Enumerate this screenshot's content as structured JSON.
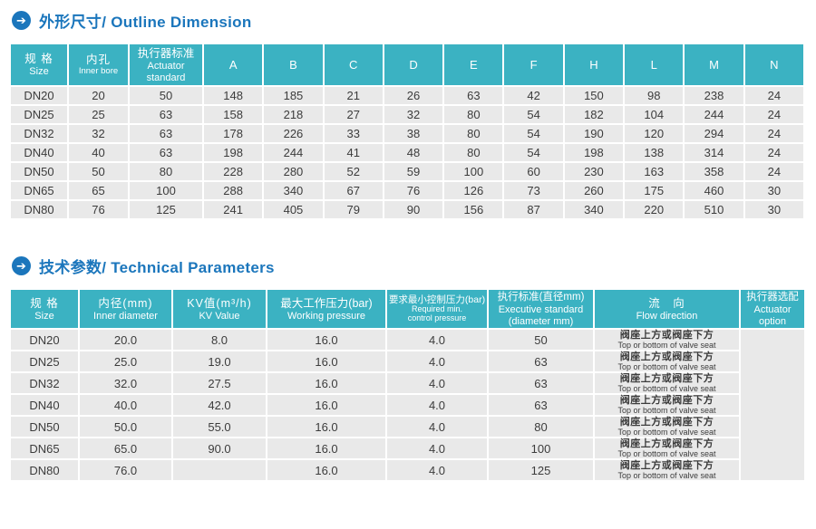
{
  "colors": {
    "accent_blue": "#1b76bc",
    "header_teal": "#3bb2c2",
    "row_gray": "#e9e9e9",
    "text_dark": "#3c3c3c"
  },
  "sections": {
    "outline": {
      "title": "外形尺寸/ Outline Dimension"
    },
    "technical": {
      "title": "技术参数/ Technical Parameters"
    }
  },
  "icons": {
    "arrow_right": "➔"
  },
  "outline_table": {
    "headers": [
      [
        "规 格",
        "Size"
      ],
      [
        "内孔",
        "Inner bore"
      ],
      [
        "执行器标准",
        "Actuator",
        "standard"
      ],
      [
        "A"
      ],
      [
        "B"
      ],
      [
        "C"
      ],
      [
        "D"
      ],
      [
        "E"
      ],
      [
        "F"
      ],
      [
        "H"
      ],
      [
        "L"
      ],
      [
        "M"
      ],
      [
        "N"
      ]
    ],
    "rows": [
      [
        "DN20",
        "20",
        "50",
        "148",
        "185",
        "21",
        "26",
        "63",
        "42",
        "150",
        "98",
        "238",
        "24"
      ],
      [
        "DN25",
        "25",
        "63",
        "158",
        "218",
        "27",
        "32",
        "80",
        "54",
        "182",
        "104",
        "244",
        "24"
      ],
      [
        "DN32",
        "32",
        "63",
        "178",
        "226",
        "33",
        "38",
        "80",
        "54",
        "190",
        "120",
        "294",
        "24"
      ],
      [
        "DN40",
        "40",
        "63",
        "198",
        "244",
        "41",
        "48",
        "80",
        "54",
        "198",
        "138",
        "314",
        "24"
      ],
      [
        "DN50",
        "50",
        "80",
        "228",
        "280",
        "52",
        "59",
        "100",
        "60",
        "230",
        "163",
        "358",
        "24"
      ],
      [
        "DN65",
        "65",
        "100",
        "288",
        "340",
        "67",
        "76",
        "126",
        "73",
        "260",
        "175",
        "460",
        "30"
      ],
      [
        "DN80",
        "76",
        "125",
        "241",
        "405",
        "79",
        "90",
        "156",
        "87",
        "340",
        "220",
        "510",
        "30"
      ]
    ]
  },
  "tech_table": {
    "headers": [
      [
        "规 格",
        "Size"
      ],
      [
        "内径(mm)",
        "Inner diameter"
      ],
      [
        "KV值(m³/h)",
        "KV Value"
      ],
      [
        "最大工作压力(bar)",
        "Working pressure"
      ],
      [
        "要求最小控制压力(bar)",
        "Required min.",
        "control pressure"
      ],
      [
        "执行标准(直径mm)",
        "Executive standard",
        "(diameter mm)"
      ],
      [
        "流　向",
        "Flow direction"
      ],
      [
        "执行器选配",
        "Actuator",
        "option"
      ]
    ],
    "rows": [
      {
        "values": [
          "DN20",
          "20.0",
          "8.0",
          "16.0",
          "4.0",
          "50"
        ],
        "flow_zh": "阀座上方或阀座下方",
        "flow_en": "Top or bottom of valve seat"
      },
      {
        "values": [
          "DN25",
          "25.0",
          "19.0",
          "16.0",
          "4.0",
          "63"
        ],
        "flow_zh": "阀座上方或阀座下方",
        "flow_en": "Top or bottom of valve seat"
      },
      {
        "values": [
          "DN32",
          "32.0",
          "27.5",
          "16.0",
          "4.0",
          "63"
        ],
        "flow_zh": "阀座上方或阀座下方",
        "flow_en": "Top or bottom of valve seat"
      },
      {
        "values": [
          "DN40",
          "40.0",
          "42.0",
          "16.0",
          "4.0",
          "63"
        ],
        "flow_zh": "阀座上方或阀座下方",
        "flow_en": "Top or bottom of valve seat"
      },
      {
        "values": [
          "DN50",
          "50.0",
          "55.0",
          "16.0",
          "4.0",
          "80"
        ],
        "flow_zh": "阀座上方或阀座下方",
        "flow_en": "Top or bottom of valve seat"
      },
      {
        "values": [
          "DN65",
          "65.0",
          "90.0",
          "16.0",
          "4.0",
          "100"
        ],
        "flow_zh": "阀座上方或阀座下方",
        "flow_en": "Top or bottom of valve seat"
      },
      {
        "values": [
          "DN80",
          "76.0",
          "",
          "16.0",
          "4.0",
          "125"
        ],
        "flow_zh": "阀座上方或阀座下方",
        "flow_en": "Top or bottom of valve seat"
      }
    ],
    "actuator_option_value": ""
  }
}
